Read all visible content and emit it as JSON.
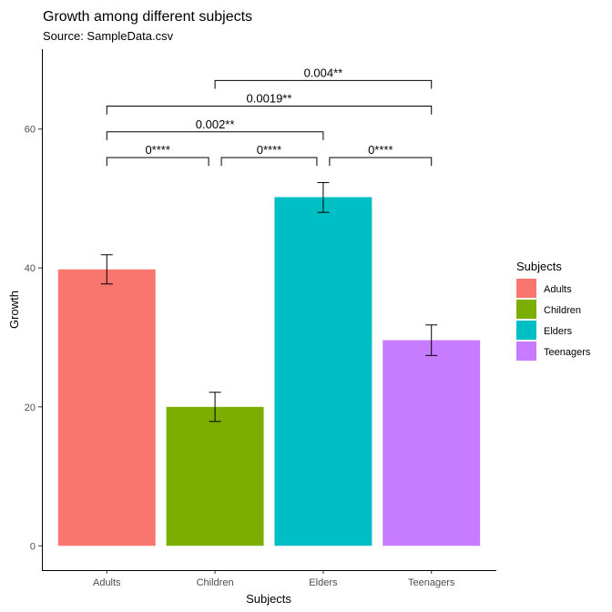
{
  "chart_data": {
    "type": "bar",
    "title": "Growth among different subjects",
    "subtitle": "Source: SampleData.csv",
    "xlabel": "Subjects",
    "ylabel": "Growth",
    "categories": [
      "Adults",
      "Children",
      "Elders",
      "Teenagers"
    ],
    "values": [
      39.8,
      20.0,
      50.2,
      29.6
    ],
    "error_low": [
      37.7,
      17.9,
      48.0,
      27.4
    ],
    "error_high": [
      41.9,
      22.1,
      52.3,
      31.8
    ],
    "colors": [
      "#F8766D",
      "#7CAE00",
      "#00BFC4",
      "#C77CFF"
    ],
    "ylim": [
      -3.5,
      71.5
    ],
    "yticks": [
      0,
      20,
      40,
      60
    ],
    "grid": false,
    "legend": {
      "title": "Subjects",
      "position": "right",
      "entries": [
        "Adults",
        "Children",
        "Elders",
        "Teenagers"
      ]
    },
    "significance": [
      {
        "from": 0,
        "to": 1,
        "y": 55.9,
        "label": "0****"
      },
      {
        "from": 1,
        "to": 2,
        "y": 55.9,
        "label": "0****"
      },
      {
        "from": 2,
        "to": 3,
        "y": 55.9,
        "label": "0****"
      },
      {
        "from": 0,
        "to": 2,
        "y": 59.6,
        "label": "0.002**"
      },
      {
        "from": 0,
        "to": 3,
        "y": 63.3,
        "label": "0.0019**"
      },
      {
        "from": 1,
        "to": 3,
        "y": 67.0,
        "label": "0.004**"
      }
    ]
  }
}
